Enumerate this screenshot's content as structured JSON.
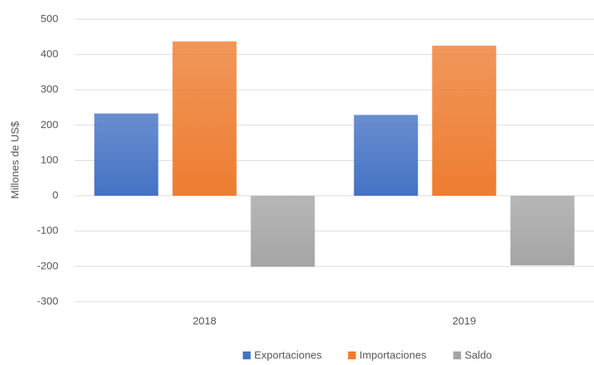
{
  "chart_data": {
    "type": "bar",
    "y_label": "Millones de US$",
    "categories": [
      "2018",
      "2019"
    ],
    "series": [
      {
        "name": "Exportaciones",
        "color": "#4472c4",
        "values": [
          233,
          229
        ]
      },
      {
        "name": "Importaciones",
        "color": "#ed7d31",
        "values": [
          437,
          425
        ]
      },
      {
        "name": "Saldo",
        "color": "#a5a5a5",
        "values": [
          -201,
          -197
        ]
      }
    ],
    "ylim": [
      -300,
      500
    ],
    "yticks": [
      -300,
      -200,
      -100,
      0,
      100,
      200,
      300,
      400,
      500
    ],
    "grid": true,
    "legend": "bottom"
  }
}
